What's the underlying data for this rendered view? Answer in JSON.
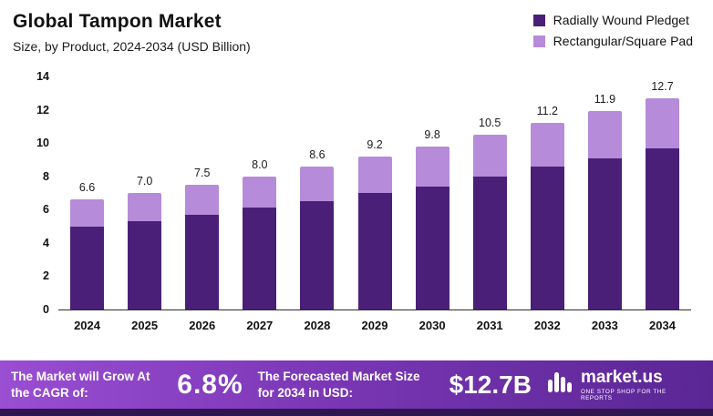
{
  "header": {
    "title": "Global Tampon Market",
    "subtitle": "Size, by Product, 2024-2034 (USD Billion)"
  },
  "legend": [
    {
      "label": "Radially Wound Pledget",
      "color": "#4a1f78"
    },
    {
      "label": "Rectangular/Square Pad",
      "color": "#b68bd9"
    }
  ],
  "chart_data": {
    "type": "bar",
    "stacked": true,
    "title": "Global Tampon Market",
    "subtitle": "Size, by Product, 2024-2034 (USD Billion)",
    "categories": [
      "2024",
      "2025",
      "2026",
      "2027",
      "2028",
      "2029",
      "2030",
      "2031",
      "2032",
      "2033",
      "2034"
    ],
    "series": [
      {
        "name": "Radially Wound Pledget",
        "color": "#4a1f78",
        "values": [
          5.0,
          5.3,
          5.7,
          6.1,
          6.5,
          7.0,
          7.4,
          8.0,
          8.6,
          9.1,
          9.7
        ]
      },
      {
        "name": "Rectangular/Square Pad",
        "color": "#b68bd9",
        "values": [
          1.6,
          1.7,
          1.8,
          1.9,
          2.1,
          2.2,
          2.4,
          2.5,
          2.6,
          2.8,
          3.0
        ]
      }
    ],
    "totals": [
      "6.6",
      "7.0",
      "7.5",
      "8.0",
      "8.6",
      "9.2",
      "9.8",
      "10.5",
      "11.2",
      "11.9",
      "12.7"
    ],
    "ylim": [
      0,
      14
    ],
    "yticks": [
      0,
      2,
      4,
      6,
      8,
      10,
      12,
      14
    ],
    "grid": false,
    "legend_position": "top-right"
  },
  "banner": {
    "cagr_label": "The Market will Grow At the CAGR of:",
    "cagr_value": "6.8%",
    "forecast_label": "The Forecasted Market Size for 2034 in USD:",
    "forecast_value": "$12.7B",
    "logo_text": "market.us",
    "logo_tagline": "ONE STOP SHOP FOR THE REPORTS"
  }
}
